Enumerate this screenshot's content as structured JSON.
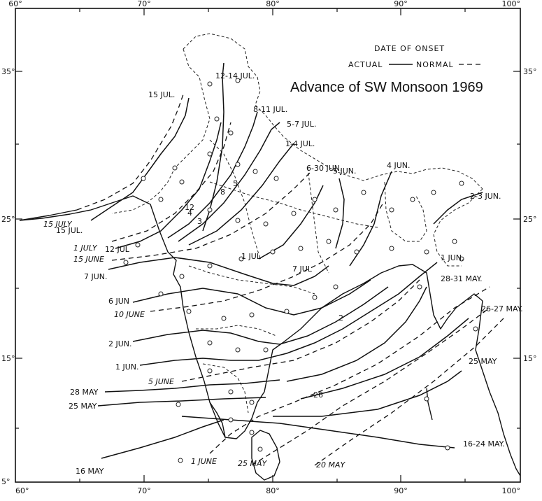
{
  "title": "Advance of SW Monsoon 1969",
  "legend": {
    "heading": "DATE OF ONSET",
    "actual_label": "ACTUAL",
    "normal_label": "NORMAL"
  },
  "axes": {
    "lon_labels": [
      "60°",
      "70°",
      "80°",
      "90°",
      "100°"
    ],
    "lat_labels": [
      "5°",
      "15°",
      "25°",
      "35°"
    ]
  },
  "actual_isochrones": [
    "15 JUL.",
    "12-14 JUL.",
    "8-11 JUL.",
    "5-7 JUL.",
    "1-4 JUL.",
    "6-30 JUN.",
    "5 JUN.",
    "4 JUN.",
    "2-3 JUN.",
    "1 JUN.",
    "28-31 MAY.",
    "26-27 MAY.",
    "25 MAY",
    "16-24 MAY.",
    "16 MAY",
    "25 MAY",
    "28 MAY",
    "1 JUN.",
    "2 JUN.",
    "6 JUN",
    "7 JUN.",
    "15 JUL.",
    "12 JUL"
  ],
  "normal_isochrones": [
    "15 JULY",
    "1 JULY",
    "15 JUNE",
    "10 JUNE",
    "5 JUNE",
    "1 JUNE",
    "25 MAY",
    "20 MAY"
  ],
  "map_texts": [
    "7 JUL",
    "1 JUL",
    "26",
    "2",
    "3",
    "4",
    "8",
    "12",
    "5"
  ],
  "colors": {
    "ink": "#111111",
    "paper": "#ffffff"
  }
}
